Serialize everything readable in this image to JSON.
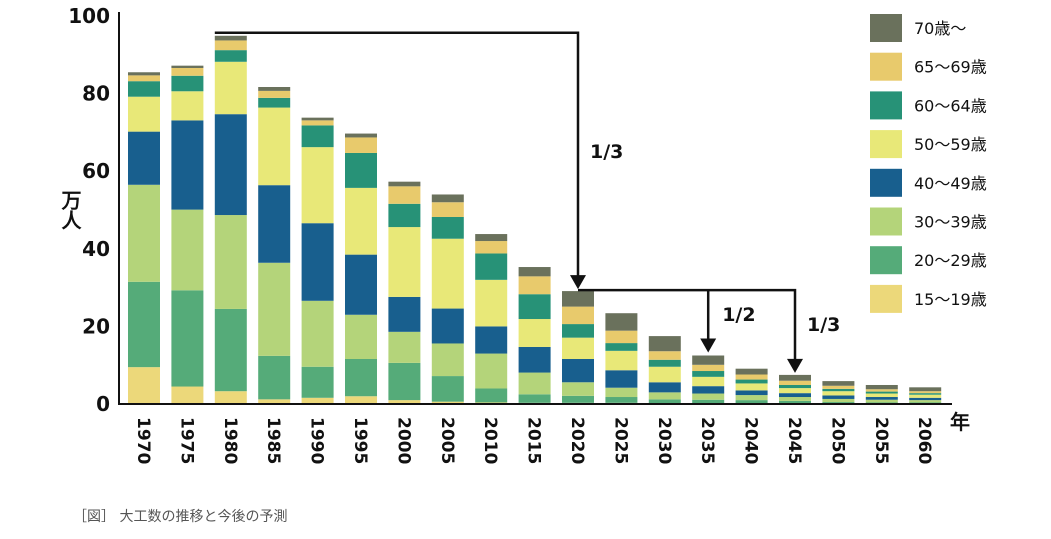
{
  "chart_data": {
    "type": "stacked-bar",
    "title": "",
    "xlabel": "年",
    "ylabel": "万人",
    "ylim": [
      0,
      100
    ],
    "yticks": [
      "0",
      "20",
      "40",
      "60",
      "80",
      "100"
    ],
    "categories": [
      "1970",
      "1975",
      "1980",
      "1985",
      "1990",
      "1995",
      "2000",
      "2005",
      "2010",
      "2015",
      "2020",
      "2025",
      "2030",
      "2035",
      "2040",
      "2045",
      "2050",
      "2055",
      "2060"
    ],
    "series": [
      {
        "name": "15～19歳",
        "color": "#ecd87a",
        "values": [
          9.5,
          4.5,
          3.3,
          1.2,
          1.6,
          2.0,
          1.0,
          0.6,
          0.4,
          0.3,
          0.3,
          0.3,
          0.2,
          0.2,
          0.2,
          0.2,
          0.1,
          0.1,
          0.1
        ]
      },
      {
        "name": "20～29歳",
        "color": "#55ab79",
        "values": [
          22.0,
          24.8,
          21.2,
          11.2,
          8.0,
          9.6,
          9.6,
          6.6,
          3.6,
          2.2,
          1.8,
          1.5,
          1.0,
          0.9,
          0.8,
          0.6,
          0.4,
          0.3,
          0.3
        ]
      },
      {
        "name": "30～39歳",
        "color": "#b4d47a",
        "values": [
          25.0,
          20.8,
          24.2,
          24.0,
          17.0,
          11.4,
          8.0,
          8.4,
          9.0,
          5.6,
          3.5,
          2.4,
          1.8,
          1.6,
          1.3,
          1.0,
          0.8,
          0.7,
          0.6
        ]
      },
      {
        "name": "40～49歳",
        "color": "#185f8e",
        "values": [
          13.7,
          23.0,
          26.0,
          20.0,
          20.0,
          15.5,
          9.0,
          9.0,
          7.0,
          6.6,
          6.0,
          4.5,
          2.6,
          1.9,
          1.2,
          1.0,
          0.9,
          0.7,
          0.6
        ]
      },
      {
        "name": "50～59歳",
        "color": "#e8e878",
        "values": [
          9.0,
          7.5,
          13.5,
          20.0,
          19.6,
          17.2,
          18.0,
          18.0,
          12.0,
          7.2,
          5.5,
          5.0,
          4.0,
          2.4,
          1.8,
          1.3,
          1.1,
          0.9,
          0.8
        ]
      },
      {
        "name": "60～64歳",
        "color": "#279277",
        "values": [
          4.0,
          4.0,
          3.0,
          2.5,
          5.6,
          9.0,
          6.0,
          5.6,
          6.8,
          6.4,
          3.5,
          2.0,
          1.8,
          1.5,
          1.0,
          0.8,
          0.6,
          0.5,
          0.4
        ]
      },
      {
        "name": "65～69歳",
        "color": "#e8ca6c",
        "values": [
          1.5,
          2.0,
          2.5,
          1.8,
          1.3,
          4.0,
          4.5,
          3.8,
          3.2,
          4.6,
          4.5,
          3.2,
          2.2,
          1.6,
          1.3,
          1.1,
          0.8,
          0.6,
          0.5
        ]
      },
      {
        "name": "70歳～",
        "color": "#6a715c",
        "values": [
          0.8,
          0.6,
          1.2,
          1.0,
          0.7,
          1.0,
          1.2,
          2.0,
          1.8,
          2.4,
          4.0,
          4.5,
          3.9,
          2.4,
          1.5,
          1.5,
          1.2,
          1.1,
          1.0
        ]
      }
    ],
    "legend_position": "right",
    "annotations": [
      {
        "label": "1/3",
        "from": "1980",
        "to": "2020"
      },
      {
        "label": "1/2",
        "from": "2020",
        "to": "2035"
      },
      {
        "label": "1/3",
        "from": "2020",
        "to": "2045"
      }
    ]
  },
  "caption": "［図］ 大工数の推移と今後の予測"
}
